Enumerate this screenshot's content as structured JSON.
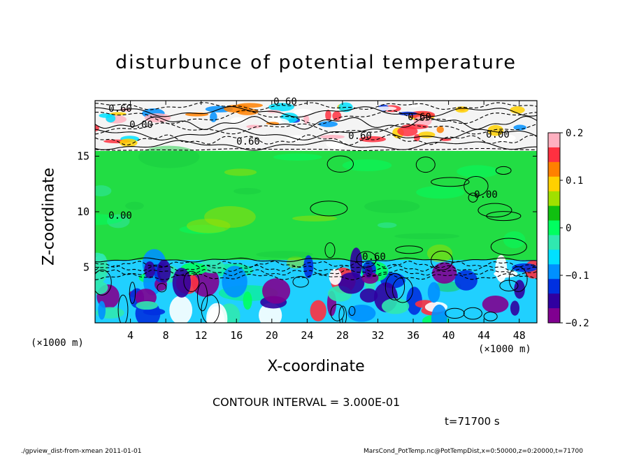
{
  "chart_data": {
    "type": "heatmap",
    "title": "disturbunce of potential temperature",
    "xlabel": "X-coordinate",
    "ylabel": "Z-coordinate",
    "x_unit": "(×1000 m)",
    "y_unit": "(×1000 m)",
    "xlim": [
      0,
      50
    ],
    "ylim": [
      0,
      20
    ],
    "x_ticks": [
      "4",
      "8",
      "12",
      "16",
      "20",
      "24",
      "28",
      "32",
      "36",
      "40",
      "44",
      "48"
    ],
    "y_ticks": [
      "5",
      "10",
      "15"
    ],
    "colorbar": {
      "range": [
        -0.2,
        0.2
      ],
      "tick_labels": [
        "0.2",
        "0.1",
        "0",
        "−0.1",
        "−0.2"
      ],
      "colors": [
        "#ffb0c0",
        "#ff3040",
        "#ff8000",
        "#ffd000",
        "#a0e000",
        "#10c010",
        "#00ff60",
        "#30e8b0",
        "#00e0ff",
        "#0090ff",
        "#0030e0",
        "#3000a0",
        "#800090"
      ]
    },
    "contour_labels": [
      "0.60",
      "0.60",
      "0.00",
      "0.60",
      "0.60",
      "0.60",
      "0.00",
      "0.00",
      "0.00",
      "0.60"
    ],
    "contour_interval": "CONTOUR INTERVAL = 3.000E-01",
    "time": "t=71700 s"
  },
  "footer": {
    "left": "./gpview_dist-from-xmean 2011-01-01",
    "right": "MarsCond_PotTemp.nc@PotTempDist,x=0:50000,z=0:20000,t=71700"
  }
}
